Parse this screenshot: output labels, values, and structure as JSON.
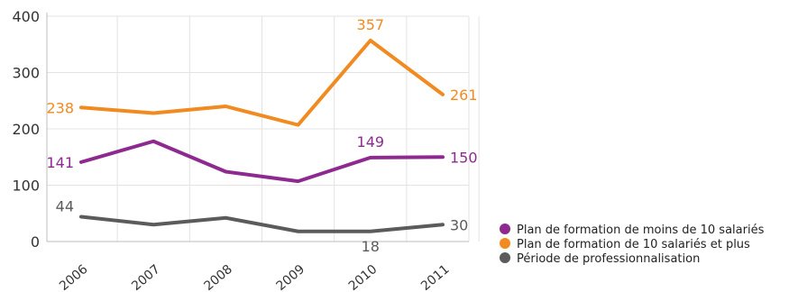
{
  "chart_data": {
    "type": "line",
    "categories": [
      "2006",
      "2007",
      "2008",
      "2009",
      "2010",
      "2011"
    ],
    "ylim": [
      0,
      400
    ],
    "yticks": [
      0,
      100,
      200,
      300,
      400
    ],
    "grid": true,
    "legend_position": "bottom-right",
    "series": [
      {
        "name": "Plan de formation de moins de 10 salariés",
        "color": "#8e2a8f",
        "values": [
          141,
          178,
          124,
          107,
          149,
          150
        ],
        "labels": [
          {
            "index": 0,
            "text": "141",
            "pos": "left"
          },
          {
            "index": 4,
            "text": "149",
            "pos": "above"
          },
          {
            "index": 5,
            "text": "150",
            "pos": "right"
          }
        ]
      },
      {
        "name": "Plan de formation de 10 salariés et plus",
        "color": "#f18a21",
        "values": [
          238,
          228,
          240,
          207,
          357,
          261
        ],
        "labels": [
          {
            "index": 0,
            "text": "238",
            "pos": "left"
          },
          {
            "index": 4,
            "text": "357",
            "pos": "above"
          },
          {
            "index": 5,
            "text": "261",
            "pos": "right"
          }
        ]
      },
      {
        "name": "Période de professionnalisation",
        "color": "#5b5b5b",
        "values": [
          44,
          30,
          42,
          18,
          18,
          30
        ],
        "labels": [
          {
            "index": 0,
            "text": "44",
            "pos": "above-left"
          },
          {
            "index": 4,
            "text": "18",
            "pos": "below"
          },
          {
            "index": 5,
            "text": "30",
            "pos": "right"
          }
        ]
      }
    ]
  }
}
